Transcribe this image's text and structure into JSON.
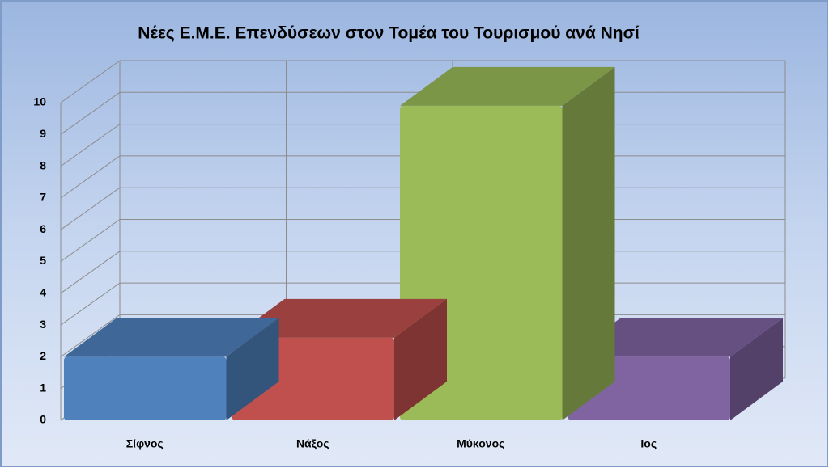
{
  "chart_data": {
    "type": "bar3d",
    "title": "Νέες Ε.Μ.Ε. Επενδύσεων στον Τομέα του Τουρισμού ανά Νησί",
    "categories": [
      "Σίφνος",
      "Νάξος",
      "Μύκονος",
      "Ιος"
    ],
    "values": [
      2,
      2.6,
      9.9,
      2
    ],
    "colors": [
      "#4f81bd",
      "#c0504d",
      "#9bbb59",
      "#8064a2"
    ],
    "ylim": [
      0,
      10
    ],
    "yticks": [
      0,
      1,
      2,
      3,
      4,
      5,
      6,
      7,
      8,
      9,
      10
    ],
    "grid": true
  }
}
